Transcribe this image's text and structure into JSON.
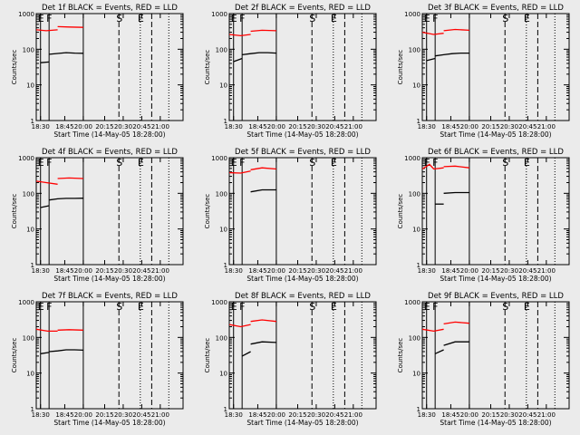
{
  "chart_data": [
    {
      "type": "line",
      "title": "Det 1f BLACK = Events, RED = LLD",
      "xlabel": "Start Time (14-May-05 18:28:00)",
      "ylabel": "Counts/sec",
      "x_ticks": [
        "18:30",
        "18:45",
        "20:00",
        "20:15",
        "20:30",
        "20:45",
        "21:00"
      ],
      "y_ticks": [
        "1",
        "10",
        "100",
        "1000"
      ],
      "ylim": [
        1,
        1000
      ],
      "y_scale": "log",
      "grid": false,
      "series": [
        {
          "color": "#000000",
          "segments": [
            [
              [
                0.0,
                42
              ],
              [
                0.06,
                44
              ]
            ],
            [
              [
                0.06,
                72
              ],
              [
                0.12,
                76
              ],
              [
                0.18,
                80
              ],
              [
                0.24,
                78
              ],
              [
                0.3,
                77
              ]
            ]
          ]
        },
        {
          "color": "#ff0000",
          "segments": [
            [
              [
                -0.03,
                350
              ],
              [
                0.04,
                330
              ],
              [
                0.12,
                350
              ]
            ],
            [
              [
                0.12,
                430
              ],
              [
                0.2,
                420
              ],
              [
                0.3,
                410
              ]
            ]
          ]
        }
      ]
    },
    {
      "type": "line",
      "title": "Det 2f BLACK = Events, RED = LLD",
      "xlabel": "Start Time (14-May-05 18:28:00)",
      "ylabel": "Counts/sec",
      "x_ticks": [
        "18:30",
        "18:45",
        "20:00",
        "20:15",
        "20:30",
        "20:45",
        "21:00"
      ],
      "y_ticks": [
        "1",
        "10",
        "100",
        "1000"
      ],
      "ylim": [
        1,
        1000
      ],
      "y_scale": "log",
      "grid": false,
      "series": [
        {
          "color": "#000000",
          "segments": [
            [
              [
                0.0,
                45
              ],
              [
                0.06,
                55
              ]
            ],
            [
              [
                0.06,
                70
              ],
              [
                0.12,
                75
              ],
              [
                0.18,
                80
              ],
              [
                0.24,
                80
              ],
              [
                0.3,
                78
              ]
            ]
          ]
        },
        {
          "color": "#ff0000",
          "segments": [
            [
              [
                -0.03,
                260
              ],
              [
                0.05,
                240
              ],
              [
                0.12,
                260
              ]
            ],
            [
              [
                0.12,
                320
              ],
              [
                0.2,
                340
              ],
              [
                0.3,
                330
              ]
            ]
          ]
        }
      ]
    },
    {
      "type": "line",
      "title": "Det 3f BLACK = Events, RED = LLD",
      "xlabel": "Start Time (14-May-05 18:28:00)",
      "ylabel": "Counts/sec",
      "x_ticks": [
        "18:30",
        "18:45",
        "20:00",
        "20:15",
        "20:30",
        "20:45",
        "21:00"
      ],
      "y_ticks": [
        "1",
        "10",
        "100",
        "1000"
      ],
      "ylim": [
        1,
        1000
      ],
      "y_scale": "log",
      "grid": false,
      "series": [
        {
          "color": "#000000",
          "segments": [
            [
              [
                0.0,
                48
              ],
              [
                0.06,
                55
              ]
            ],
            [
              [
                0.06,
                65
              ],
              [
                0.12,
                70
              ],
              [
                0.18,
                75
              ],
              [
                0.24,
                78
              ],
              [
                0.3,
                78
              ]
            ]
          ]
        },
        {
          "color": "#ff0000",
          "segments": [
            [
              [
                -0.03,
                300
              ],
              [
                0.05,
                260
              ],
              [
                0.12,
                280
              ]
            ],
            [
              [
                0.12,
                330
              ],
              [
                0.2,
                360
              ],
              [
                0.3,
                340
              ]
            ]
          ]
        }
      ]
    },
    {
      "type": "line",
      "title": "Det 4f BLACK = Events, RED = LLD",
      "xlabel": "Start Time (14-May-05 18:28:00)",
      "ylabel": "Counts/sec",
      "x_ticks": [
        "18:30",
        "18:45",
        "20:00",
        "20:15",
        "20:30",
        "20:45",
        "21:00"
      ],
      "y_ticks": [
        "1",
        "10",
        "100",
        "1000"
      ],
      "ylim": [
        1,
        1000
      ],
      "y_scale": "log",
      "grid": false,
      "series": [
        {
          "color": "#000000",
          "segments": [
            [
              [
                0.0,
                40
              ],
              [
                0.06,
                45
              ]
            ],
            [
              [
                0.06,
                65
              ],
              [
                0.12,
                70
              ],
              [
                0.18,
                72
              ],
              [
                0.24,
                72
              ],
              [
                0.3,
                73
              ]
            ]
          ]
        },
        {
          "color": "#ff0000",
          "segments": [
            [
              [
                -0.03,
                220
              ],
              [
                0.04,
                200
              ],
              [
                0.12,
                180
              ]
            ],
            [
              [
                0.12,
                260
              ],
              [
                0.2,
                270
              ],
              [
                0.3,
                260
              ]
            ]
          ]
        }
      ]
    },
    {
      "type": "line",
      "title": "Det 5f BLACK = Events, RED = LLD",
      "xlabel": "Start Time (14-May-05 18:28:00)",
      "ylabel": "Counts/sec",
      "x_ticks": [
        "18:30",
        "18:45",
        "20:00",
        "20:15",
        "20:30",
        "20:45",
        "21:00"
      ],
      "y_ticks": [
        "1",
        "10",
        "100",
        "1000"
      ],
      "ylim": [
        1,
        1000
      ],
      "y_scale": "log",
      "grid": false,
      "series": [
        {
          "color": "#000000",
          "segments": [
            [
              [
                0.12,
                110
              ],
              [
                0.2,
                125
              ],
              [
                0.3,
                125
              ]
            ]
          ]
        },
        {
          "color": "#ff0000",
          "segments": [
            [
              [
                -0.03,
                380
              ],
              [
                0.05,
                370
              ],
              [
                0.12,
                420
              ]
            ],
            [
              [
                0.12,
                460
              ],
              [
                0.2,
                520
              ],
              [
                0.3,
                480
              ]
            ]
          ]
        }
      ]
    },
    {
      "type": "line",
      "title": "Det 6f BLACK = Events, RED = LLD",
      "xlabel": "Start Time (14-May-05 18:28:00)",
      "ylabel": "Counts/sec",
      "x_ticks": [
        "18:30",
        "18:45",
        "20:00",
        "20:15",
        "20:30",
        "20:45",
        "21:00"
      ],
      "y_ticks": [
        "1",
        "10",
        "100",
        "1000"
      ],
      "ylim": [
        1,
        1000
      ],
      "y_scale": "log",
      "grid": false,
      "series": [
        {
          "color": "#000000",
          "segments": [
            [
              [
                0.06,
                50
              ],
              [
                0.12,
                50
              ]
            ],
            [
              [
                0.12,
                100
              ],
              [
                0.2,
                105
              ],
              [
                0.3,
                105
              ]
            ]
          ]
        },
        {
          "color": "#ff0000",
          "segments": [
            [
              [
                -0.03,
                480
              ],
              [
                0.02,
                650
              ],
              [
                0.05,
                480
              ],
              [
                0.12,
                520
              ]
            ],
            [
              [
                0.12,
                560
              ],
              [
                0.2,
                580
              ],
              [
                0.3,
                520
              ]
            ]
          ]
        }
      ]
    },
    {
      "type": "line",
      "title": "Det 7f BLACK = Events, RED = LLD",
      "xlabel": "Start Time (14-May-05 18:28:00)",
      "ylabel": "Counts/sec",
      "x_ticks": [
        "18:30",
        "18:45",
        "20:00",
        "20:15",
        "20:30",
        "20:45",
        "21:00"
      ],
      "y_ticks": [
        "1",
        "10",
        "100",
        "1000"
      ],
      "ylim": [
        1,
        1000
      ],
      "y_scale": "log",
      "grid": false,
      "series": [
        {
          "color": "#000000",
          "segments": [
            [
              [
                0.0,
                35
              ],
              [
                0.06,
                38
              ]
            ],
            [
              [
                0.06,
                40
              ],
              [
                0.12,
                42
              ],
              [
                0.18,
                45
              ],
              [
                0.24,
                45
              ],
              [
                0.3,
                44
              ]
            ]
          ]
        },
        {
          "color": "#ff0000",
          "segments": [
            [
              [
                -0.03,
                170
              ],
              [
                0.05,
                150
              ],
              [
                0.12,
                150
              ]
            ],
            [
              [
                0.12,
                160
              ],
              [
                0.2,
                165
              ],
              [
                0.3,
                160
              ]
            ]
          ]
        }
      ]
    },
    {
      "type": "line",
      "title": "Det 8f BLACK = Events, RED = LLD",
      "xlabel": "Start Time (14-May-05 18:28:00)",
      "ylabel": "Counts/sec",
      "x_ticks": [
        "18:30",
        "18:45",
        "20:00",
        "20:15",
        "20:30",
        "20:45",
        "21:00"
      ],
      "y_ticks": [
        "1",
        "10",
        "100",
        "1000"
      ],
      "ylim": [
        1,
        1000
      ],
      "y_scale": "log",
      "grid": false,
      "series": [
        {
          "color": "#000000",
          "segments": [
            [
              [
                0.06,
                30
              ],
              [
                0.12,
                40
              ]
            ],
            [
              [
                0.12,
                65
              ],
              [
                0.2,
                75
              ],
              [
                0.3,
                72
              ]
            ]
          ]
        },
        {
          "color": "#ff0000",
          "segments": [
            [
              [
                -0.03,
                230
              ],
              [
                0.05,
                200
              ],
              [
                0.12,
                230
              ]
            ],
            [
              [
                0.12,
                280
              ],
              [
                0.2,
                310
              ],
              [
                0.3,
                280
              ]
            ]
          ]
        }
      ]
    },
    {
      "type": "line",
      "title": "Det 9f BLACK = Events, RED = LLD",
      "xlabel": "Start Time (14-May-05 18:28:00)",
      "ylabel": "Counts/sec",
      "x_ticks": [
        "18:30",
        "18:45",
        "20:00",
        "20:15",
        "20:30",
        "20:45",
        "21:00"
      ],
      "y_ticks": [
        "1",
        "10",
        "100",
        "1000"
      ],
      "ylim": [
        1,
        1000
      ],
      "y_scale": "log",
      "grid": false,
      "series": [
        {
          "color": "#000000",
          "segments": [
            [
              [
                0.06,
                35
              ],
              [
                0.12,
                45
              ]
            ],
            [
              [
                0.12,
                60
              ],
              [
                0.2,
                75
              ],
              [
                0.3,
                75
              ]
            ]
          ]
        },
        {
          "color": "#ff0000",
          "segments": [
            [
              [
                -0.03,
                170
              ],
              [
                0.05,
                150
              ],
              [
                0.12,
                170
              ]
            ],
            [
              [
                0.12,
                240
              ],
              [
                0.2,
                270
              ],
              [
                0.3,
                250
              ]
            ]
          ]
        }
      ]
    }
  ],
  "markers": {
    "E1": "E",
    "F": "F",
    "S": "S",
    "E2": "E"
  }
}
